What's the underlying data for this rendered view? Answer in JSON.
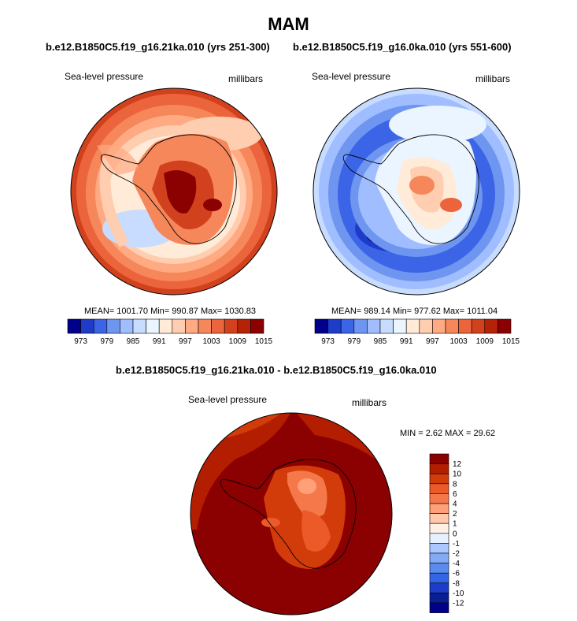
{
  "title": "MAM",
  "panels": [
    {
      "case_title": "b.e12.B1850C5.f19_g16.21ka.010 (yrs 251-300)",
      "variable": "Sea-level pressure",
      "units": "millibars",
      "stats": "MEAN= 1001.70  Min= 990.87  Max= 1030.83",
      "theme": "high"
    },
    {
      "case_title": "b.e12.B1850C5.f19_g16.0ka.010 (yrs 551-600)",
      "variable": "Sea-level pressure",
      "units": "millibars",
      "stats": "MEAN= 989.14  Min= 977.62  Max= 1011.04",
      "theme": "low"
    }
  ],
  "abs_colorbar": {
    "labels": [
      "973",
      "979",
      "985",
      "991",
      "997",
      "1003",
      "1009",
      "1015"
    ],
    "colors": [
      "#00008b",
      "#1e3cc8",
      "#3c64e6",
      "#6e96f0",
      "#a0beff",
      "#c8dcff",
      "#ebf5ff",
      "#ffebd7",
      "#ffcdaf",
      "#ffaa82",
      "#f5875a",
      "#eb643c",
      "#d2411e",
      "#b42308",
      "#8b0000"
    ]
  },
  "diff_panel": {
    "title": "b.e12.B1850C5.f19_g16.21ka.010 - b.e12.B1850C5.f19_g16.0ka.010",
    "variable": "Sea-level pressure",
    "units": "millibars",
    "stats": "MIN =   2.62 MAX =  29.62"
  },
  "diff_colorbar": {
    "labels": [
      "12",
      "10",
      "8",
      "6",
      "4",
      "2",
      "1",
      "0",
      "-1",
      "-2",
      "-4",
      "-6",
      "-8",
      "-10",
      "-12"
    ],
    "colors": [
      "#8b0000",
      "#b41e00",
      "#d23c0a",
      "#eb5a28",
      "#f5784b",
      "#ffa078",
      "#ffc8aa",
      "#fff0e6",
      "#e6f0ff",
      "#aac8ff",
      "#82aaf5",
      "#5a8cf0",
      "#3264e6",
      "#1e3cc8",
      "#0a1e96",
      "#00008b"
    ]
  },
  "colors": {
    "coast": "#000000",
    "outline": "#000000"
  }
}
